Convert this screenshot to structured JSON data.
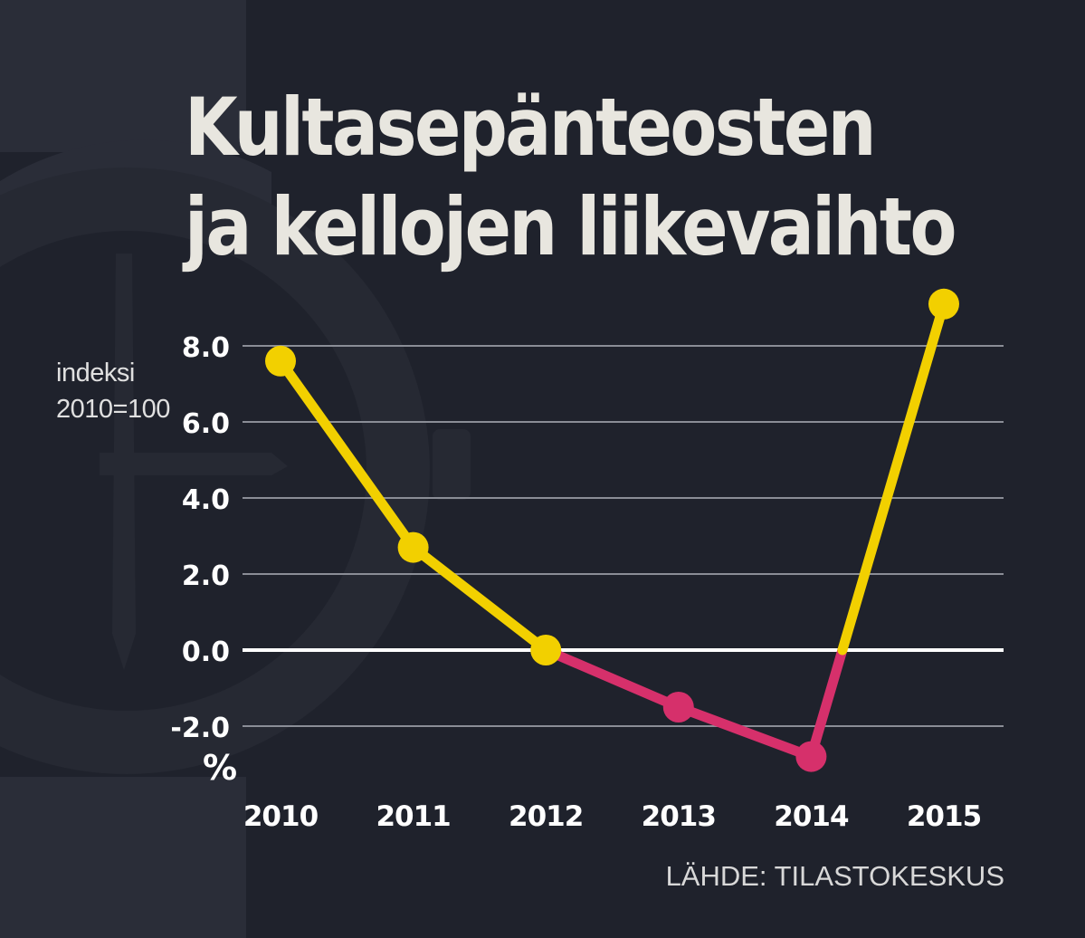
{
  "title_lines": [
    "Kultasepänteosten",
    "ja kellojen liikevaihto"
  ],
  "unit_note_lines": [
    "indeksi",
    "2010=100"
  ],
  "percent_label": "%",
  "source": "LÄHDE: TILASTOKESKUS",
  "colors": {
    "background": "#1f222c",
    "positive": "#f2d000",
    "negative": "#d6306b",
    "gridline": "#8a8d96",
    "zero_line": "#ffffff"
  },
  "chart_data": {
    "type": "line",
    "categories": [
      "2010",
      "2011",
      "2012",
      "2013",
      "2014",
      "2015"
    ],
    "values": [
      7.6,
      2.7,
      0.0,
      -1.5,
      -2.8,
      9.1
    ],
    "ylim": [
      -2.0,
      8.0
    ],
    "yticks": [
      8.0,
      6.0,
      4.0,
      2.0,
      0.0,
      -2.0
    ],
    "ytick_labels": [
      "8.0",
      "6.0",
      "4.0",
      "2.0",
      "0.0",
      "-2.0"
    ],
    "grid": true,
    "xlabel": "",
    "ylabel": "%"
  }
}
